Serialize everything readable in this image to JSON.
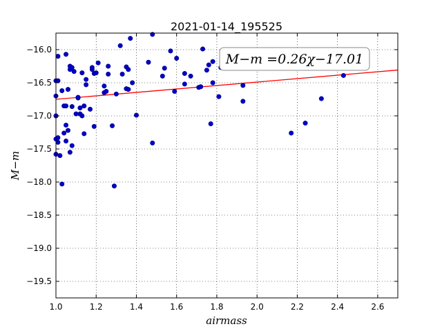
{
  "chart_data": {
    "type": "scatter",
    "title": "2021-01-14_195525",
    "xlabel": "airmass",
    "ylabel": "M−m",
    "xlim": [
      1.0,
      2.7
    ],
    "ylim": [
      -19.75,
      -15.75
    ],
    "y_inverted": true,
    "grid": true,
    "grid_style": "dotted",
    "x_ticks": [
      1.0,
      1.2,
      1.4,
      1.6,
      1.8,
      2.0,
      2.2,
      2.4,
      2.6
    ],
    "x_tick_labels": [
      "1.0",
      "1.2",
      "1.4",
      "1.6",
      "1.8",
      "2.0",
      "2.2",
      "2.4",
      "2.6"
    ],
    "y_ticks": [
      -16.0,
      -16.5,
      -17.0,
      -17.5,
      -18.0,
      -18.5,
      -19.0,
      -19.5
    ],
    "y_tick_labels": [
      "−16.0",
      "−16.5",
      "−17.0",
      "−17.5",
      "−18.0",
      "−18.5",
      "−19.0",
      "−19.5"
    ],
    "annotation": "M−m =0.26χ−17.01",
    "fit_line": {
      "slope": 0.26,
      "intercept": -17.01,
      "color": "#ff0000"
    },
    "marker_color": "#0000cc",
    "points": [
      {
        "x": 1.0,
        "y": -16.47
      },
      {
        "x": 1.0,
        "y": -16.7
      },
      {
        "x": 1.0,
        "y": -17.0
      },
      {
        "x": 1.0,
        "y": -17.35
      },
      {
        "x": 1.0,
        "y": -17.58
      },
      {
        "x": 1.01,
        "y": -16.1
      },
      {
        "x": 1.01,
        "y": -16.47
      },
      {
        "x": 1.01,
        "y": -17.33
      },
      {
        "x": 1.01,
        "y": -17.4
      },
      {
        "x": 1.02,
        "y": -17.6
      },
      {
        "x": 1.03,
        "y": -18.03
      },
      {
        "x": 1.03,
        "y": -16.62
      },
      {
        "x": 1.04,
        "y": -16.85
      },
      {
        "x": 1.04,
        "y": -17.26
      },
      {
        "x": 1.05,
        "y": -16.85
      },
      {
        "x": 1.05,
        "y": -17.14
      },
      {
        "x": 1.05,
        "y": -17.38
      },
      {
        "x": 1.05,
        "y": -16.07
      },
      {
        "x": 1.06,
        "y": -16.6
      },
      {
        "x": 1.06,
        "y": -17.22
      },
      {
        "x": 1.07,
        "y": -16.25
      },
      {
        "x": 1.07,
        "y": -16.3
      },
      {
        "x": 1.07,
        "y": -17.55
      },
      {
        "x": 1.08,
        "y": -16.27
      },
      {
        "x": 1.08,
        "y": -16.86
      },
      {
        "x": 1.08,
        "y": -17.45
      },
      {
        "x": 1.09,
        "y": -16.33
      },
      {
        "x": 1.1,
        "y": -16.97
      },
      {
        "x": 1.11,
        "y": -16.73
      },
      {
        "x": 1.11,
        "y": -16.72
      },
      {
        "x": 1.12,
        "y": -16.88
      },
      {
        "x": 1.12,
        "y": -16.97
      },
      {
        "x": 1.13,
        "y": -16.35
      },
      {
        "x": 1.13,
        "y": -17.0
      },
      {
        "x": 1.14,
        "y": -16.85
      },
      {
        "x": 1.14,
        "y": -17.27
      },
      {
        "x": 1.15,
        "y": -16.45
      },
      {
        "x": 1.15,
        "y": -16.53
      },
      {
        "x": 1.17,
        "y": -16.9
      },
      {
        "x": 1.18,
        "y": -16.3
      },
      {
        "x": 1.18,
        "y": -16.27
      },
      {
        "x": 1.19,
        "y": -16.36
      },
      {
        "x": 1.19,
        "y": -17.16
      },
      {
        "x": 1.2,
        "y": -16.35
      },
      {
        "x": 1.21,
        "y": -16.2
      },
      {
        "x": 1.24,
        "y": -16.55
      },
      {
        "x": 1.24,
        "y": -16.65
      },
      {
        "x": 1.25,
        "y": -16.63
      },
      {
        "x": 1.26,
        "y": -16.25
      },
      {
        "x": 1.26,
        "y": -16.37
      },
      {
        "x": 1.28,
        "y": -17.15
      },
      {
        "x": 1.29,
        "y": -18.06
      },
      {
        "x": 1.3,
        "y": -16.67
      },
      {
        "x": 1.32,
        "y": -15.94
      },
      {
        "x": 1.33,
        "y": -16.37
      },
      {
        "x": 1.35,
        "y": -16.26
      },
      {
        "x": 1.35,
        "y": -16.59
      },
      {
        "x": 1.36,
        "y": -16.3
      },
      {
        "x": 1.36,
        "y": -16.6
      },
      {
        "x": 1.37,
        "y": -15.83
      },
      {
        "x": 1.38,
        "y": -16.5
      },
      {
        "x": 1.4,
        "y": -16.99
      },
      {
        "x": 1.46,
        "y": -16.19
      },
      {
        "x": 1.48,
        "y": -17.41
      },
      {
        "x": 1.48,
        "y": -15.77
      },
      {
        "x": 1.53,
        "y": -16.4
      },
      {
        "x": 1.54,
        "y": -16.28
      },
      {
        "x": 1.57,
        "y": -16.02
      },
      {
        "x": 1.59,
        "y": -16.63
      },
      {
        "x": 1.6,
        "y": -16.13
      },
      {
        "x": 1.64,
        "y": -16.36
      },
      {
        "x": 1.64,
        "y": -16.52
      },
      {
        "x": 1.67,
        "y": -16.4
      },
      {
        "x": 1.71,
        "y": -16.57
      },
      {
        "x": 1.72,
        "y": -16.56
      },
      {
        "x": 1.73,
        "y": -15.99
      },
      {
        "x": 1.75,
        "y": -16.31
      },
      {
        "x": 1.76,
        "y": -16.23
      },
      {
        "x": 1.77,
        "y": -17.12
      },
      {
        "x": 1.78,
        "y": -16.18
      },
      {
        "x": 1.78,
        "y": -16.5
      },
      {
        "x": 1.81,
        "y": -16.71
      },
      {
        "x": 1.82,
        "y": -16.27
      },
      {
        "x": 1.93,
        "y": -16.54
      },
      {
        "x": 1.93,
        "y": -16.78
      },
      {
        "x": 2.17,
        "y": -17.26
      },
      {
        "x": 2.24,
        "y": -17.11
      },
      {
        "x": 2.32,
        "y": -16.74
      },
      {
        "x": 2.43,
        "y": -16.39
      }
    ]
  }
}
